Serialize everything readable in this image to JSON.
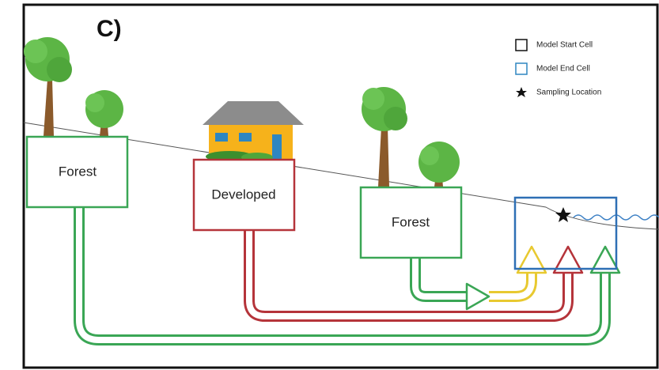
{
  "panel_label": "C)",
  "nodes": [
    {
      "label": "Forest"
    },
    {
      "label": "Developed"
    },
    {
      "label": "Forest"
    }
  ],
  "legend": [
    {
      "label": "Model Start Cell"
    },
    {
      "label": "Model End Cell"
    },
    {
      "label": "Sampling Location"
    }
  ]
}
